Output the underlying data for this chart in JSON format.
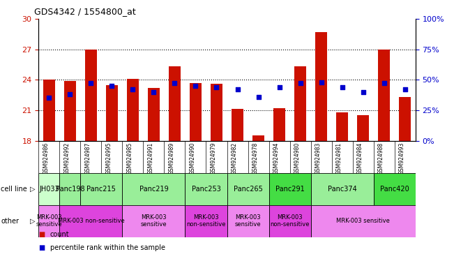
{
  "title": "GDS4342 / 1554800_at",
  "samples": [
    "GSM924986",
    "GSM924992",
    "GSM924987",
    "GSM924995",
    "GSM924985",
    "GSM924991",
    "GSM924989",
    "GSM924990",
    "GSM924979",
    "GSM924982",
    "GSM924978",
    "GSM924994",
    "GSM924980",
    "GSM924983",
    "GSM924981",
    "GSM924984",
    "GSM924988",
    "GSM924993"
  ],
  "counts": [
    24.0,
    23.9,
    27.0,
    23.5,
    24.1,
    23.2,
    25.3,
    23.7,
    23.6,
    21.1,
    18.5,
    21.2,
    25.3,
    28.7,
    20.8,
    20.5,
    27.0,
    22.3
  ],
  "percentiles": [
    35,
    38,
    47,
    45,
    42,
    40,
    47,
    45,
    44,
    42,
    36,
    44,
    47,
    48,
    44,
    40,
    47,
    42
  ],
  "ylim_left": [
    18,
    30
  ],
  "ylim_right": [
    0,
    100
  ],
  "yticks_left": [
    18,
    21,
    24,
    27,
    30
  ],
  "ytick_labels_right": [
    "0%",
    "25%",
    "50%",
    "75%",
    "100%"
  ],
  "bar_color": "#cc1100",
  "dot_color": "#0000cc",
  "cell_lines": [
    {
      "name": "JH033",
      "start": 0,
      "end": 1,
      "color": "#ccffcc"
    },
    {
      "name": "Panc198",
      "start": 1,
      "end": 2,
      "color": "#99ee99"
    },
    {
      "name": "Panc215",
      "start": 2,
      "end": 4,
      "color": "#99ee99"
    },
    {
      "name": "Panc219",
      "start": 4,
      "end": 7,
      "color": "#99ee99"
    },
    {
      "name": "Panc253",
      "start": 7,
      "end": 9,
      "color": "#99ee99"
    },
    {
      "name": "Panc265",
      "start": 9,
      "end": 11,
      "color": "#99ee99"
    },
    {
      "name": "Panc291",
      "start": 11,
      "end": 13,
      "color": "#44dd44"
    },
    {
      "name": "Panc374",
      "start": 13,
      "end": 16,
      "color": "#99ee99"
    },
    {
      "name": "Panc420",
      "start": 16,
      "end": 18,
      "color": "#44dd44"
    }
  ],
  "other_labels": [
    {
      "text": "MRK-003\nsensitive",
      "start": 0,
      "end": 1,
      "color": "#ee88ee"
    },
    {
      "text": "MRK-003 non-sensitive",
      "start": 1,
      "end": 4,
      "color": "#dd44dd"
    },
    {
      "text": "MRK-003\nsensitive",
      "start": 4,
      "end": 7,
      "color": "#ee88ee"
    },
    {
      "text": "MRK-003\nnon-sensitive",
      "start": 7,
      "end": 9,
      "color": "#dd44dd"
    },
    {
      "text": "MRK-003\nsensitive",
      "start": 9,
      "end": 11,
      "color": "#ee88ee"
    },
    {
      "text": "MRK-003\nnon-sensitive",
      "start": 11,
      "end": 13,
      "color": "#dd44dd"
    },
    {
      "text": "MRK-003 sensitive",
      "start": 13,
      "end": 18,
      "color": "#ee88ee"
    }
  ],
  "cell_line_row_label": "cell line",
  "other_row_label": "other",
  "bg_color": "#ffffff",
  "tick_label_color_left": "#cc1100",
  "tick_label_color_right": "#0000cc",
  "xlabel_bg": "#dddddd",
  "n_samples": 18
}
